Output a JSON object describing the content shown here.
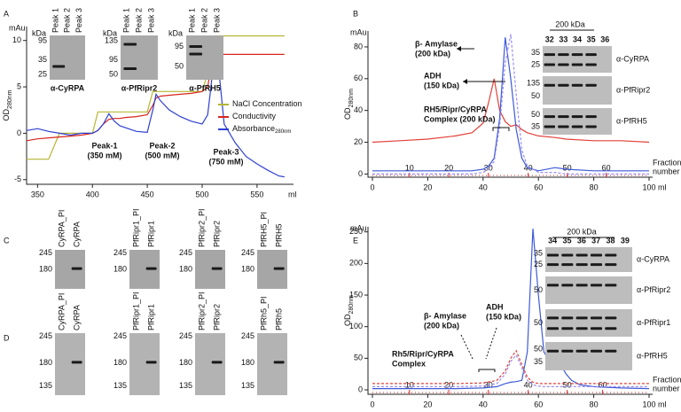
{
  "panel_labels": [
    "A",
    "B",
    "C",
    "D",
    "E"
  ],
  "chart_data": [
    {
      "type": "line",
      "y_unit": "mAu",
      "ylabel": "OD",
      "ylabel_sub": "280nm",
      "xlabel": "ml",
      "xlim": [
        340,
        580
      ],
      "xticks": [
        350,
        400,
        450,
        500,
        550
      ],
      "ylim": [
        -5.5,
        11.5
      ],
      "yticks": [
        -5,
        0,
        5,
        10
      ],
      "legend": "right",
      "x": [
        340,
        350,
        360,
        370,
        380,
        390,
        400,
        405,
        410,
        415,
        420,
        425,
        430,
        440,
        450,
        455,
        458,
        462,
        470,
        480,
        490,
        500,
        505,
        508,
        512,
        515,
        520,
        530,
        540,
        550,
        560,
        570,
        575
      ],
      "series": [
        {
          "name": "NaCl Concentration",
          "color": "#b5b532",
          "values": [
            -2.8,
            -2.8,
            -2.8,
            0,
            0,
            0,
            0,
            2.3,
            2.3,
            2.3,
            2.3,
            2.3,
            2.3,
            2.3,
            2.3,
            4.5,
            4.5,
            4.5,
            4.5,
            4.5,
            4.5,
            4.5,
            6.5,
            6.5,
            10.5,
            10.5,
            10.5,
            10.5,
            10.5,
            10.5,
            10.5,
            10.5,
            10.5
          ]
        },
        {
          "name": "Conductivity",
          "color": "#d7261e",
          "values": [
            -0.8,
            -0.6,
            -0.5,
            -0.4,
            -0.3,
            -0.2,
            0,
            0.3,
            1,
            1.5,
            1.6,
            1.6,
            1.7,
            1.8,
            2,
            3,
            3.8,
            4,
            4.1,
            4.2,
            4.3,
            4.5,
            5,
            7,
            8.4,
            8.5,
            8.5,
            8.5,
            8.5,
            8.5,
            8.5,
            8.5,
            8.5
          ]
        },
        {
          "name": "Absorbance",
          "name_sub": "280nm",
          "color": "#2e3fd1",
          "values": [
            0.3,
            0.5,
            0.2,
            0,
            -0.2,
            0,
            0,
            0.3,
            1,
            2.1,
            1.3,
            0.8,
            0.6,
            0.2,
            0.1,
            2.5,
            4.2,
            3.5,
            2.5,
            1.8,
            1.3,
            1,
            2,
            5,
            9.6,
            7,
            1,
            -1,
            -2.5,
            -3.3,
            -4,
            -4.6,
            -4.7
          ]
        }
      ],
      "annotations": [
        [
          "Peak-1",
          "(350 mM)"
        ],
        [
          "Peak-2",
          "(500 mM)"
        ],
        [
          "Peak-3",
          "(750 mM)"
        ]
      ],
      "insets": [
        {
          "unit": "kDa",
          "lanes": [
            "Peak 1",
            "Peak 2",
            "Peak 3"
          ],
          "markers": [
            "95",
            "35",
            "25"
          ],
          "antibody": "α-CyRPA"
        },
        {
          "unit": "kDa",
          "lanes": [
            "Peak 1",
            "Peak 2",
            "Peak 3"
          ],
          "markers": [
            "135",
            "95",
            "50"
          ],
          "antibody": "α-PfRipr2"
        },
        {
          "unit": "kDa",
          "lanes": [
            "Peak 1",
            "Peak 2",
            "Peak 3"
          ],
          "markers": [
            "95",
            "50"
          ],
          "antibody": "α-PfRH5"
        }
      ]
    },
    {
      "type": "line",
      "y_unit": "mAu",
      "ylabel": "OD",
      "ylabel_sub": "280nm",
      "xlabel": "ml",
      "xlim": [
        0,
        100
      ],
      "xticks": [
        0,
        20,
        40,
        60,
        80,
        100
      ],
      "ylim": [
        -2,
        90
      ],
      "yticks": [
        0,
        20,
        40,
        60,
        80
      ],
      "x": [
        0,
        10,
        20,
        30,
        36,
        40,
        42,
        44,
        46,
        48,
        50,
        52,
        54,
        56,
        60,
        66,
        70,
        80,
        90,
        100
      ],
      "series": [
        {
          "color": "#e0413a",
          "values": [
            20,
            21,
            22,
            24,
            26,
            32,
            45,
            60,
            40,
            33,
            30,
            31,
            28,
            26,
            24,
            23,
            22,
            21,
            21,
            20
          ]
        },
        {
          "color": "#3d5ad8",
          "values": [
            2,
            2,
            2,
            2,
            2,
            3,
            5,
            10,
            35,
            86,
            60,
            28,
            10,
            4,
            2,
            4,
            3,
            2,
            2,
            2
          ]
        },
        {
          "color": "#9a8df0",
          "style": "dashed",
          "values": [
            0,
            0,
            0,
            0,
            0,
            1,
            3,
            8,
            30,
            70,
            88,
            50,
            15,
            5,
            1,
            1,
            0,
            0,
            0,
            0
          ]
        }
      ],
      "fraction_color": "#d62728",
      "fraction_ticks": [
        {
          "value": 13.4,
          "label": "10"
        },
        {
          "value": 27.6,
          "label": "20"
        },
        {
          "value": 41.9,
          "label": "30"
        },
        {
          "value": 56.3,
          "label": "40"
        },
        {
          "value": 70.4,
          "label": "50"
        },
        {
          "value": 84.5,
          "label": "60"
        }
      ],
      "fraction_label": [
        "Fraction",
        "number"
      ],
      "annotations": [
        [
          "β- Amylase",
          "(200 kDa)"
        ],
        [
          "ADH",
          "(150 kDa)"
        ],
        [
          "RH5/Ripr/CyRPA",
          "Complex (200 kDa)"
        ]
      ],
      "blot_panel": {
        "size": "200 kDa",
        "lane_color": "#d62728",
        "lanes": [
          "32",
          "33",
          "34",
          "35",
          "36"
        ],
        "blots": [
          {
            "markers": [
              "35",
              "25"
            ],
            "antibody": "α-CyRPA"
          },
          {
            "markers": [
              "135",
              "50"
            ],
            "antibody": "α-PfRipr2"
          },
          {
            "markers": [
              "50",
              "35"
            ],
            "antibody": "α-PfRH5"
          }
        ]
      }
    },
    {
      "type": "line",
      "y_unit": "mAu",
      "ylabel": "OD",
      "ylabel_sub": "280nm",
      "xlabel": "ml",
      "xlim": [
        0,
        100
      ],
      "xticks": [
        0,
        20,
        40,
        60,
        80,
        100
      ],
      "ylim": [
        -7,
        258
      ],
      "yticks": [
        0,
        50,
        100,
        150,
        200,
        250
      ],
      "x": [
        0,
        10,
        20,
        30,
        40,
        45,
        48,
        50,
        52,
        54,
        56,
        58,
        60,
        62,
        64,
        66,
        68,
        70,
        72,
        75,
        80,
        90,
        100
      ],
      "series": [
        {
          "color": "#3d5ad8",
          "values": [
            2,
            2,
            2,
            2,
            3,
            5,
            10,
            12,
            13,
            15,
            60,
            255,
            150,
            60,
            45,
            50,
            40,
            25,
            15,
            8,
            5,
            3,
            2
          ]
        },
        {
          "color": "#e0413a",
          "style": "dashed",
          "values": [
            10,
            10,
            10,
            10,
            11,
            15,
            30,
            50,
            62,
            40,
            20,
            12,
            10,
            10,
            10,
            10,
            10,
            10,
            10,
            10,
            10,
            10,
            10
          ]
        },
        {
          "color": "#9a8df0",
          "style": "dashed",
          "values": [
            5,
            5,
            5,
            5,
            6,
            10,
            25,
            45,
            55,
            35,
            15,
            8,
            6,
            5,
            5,
            5,
            5,
            5,
            5,
            5,
            5,
            5,
            5
          ]
        }
      ],
      "fraction_color": "#d62728",
      "fraction_ticks": [
        {
          "value": 13.4,
          "label": "10"
        },
        {
          "value": 27.6,
          "label": "20"
        },
        {
          "value": 41.9,
          "label": "30"
        },
        {
          "value": 56.3,
          "label": "40"
        },
        {
          "value": 70.4,
          "label": "50"
        },
        {
          "value": 83.2,
          "label": "60"
        }
      ],
      "fraction_label": [
        "Fraction",
        "number"
      ],
      "annotations": [
        [
          "β- Amylase",
          "(200 kDa)"
        ],
        [
          "ADH",
          "(150 kDa)"
        ],
        [
          "Rh5/Ripr/CyRPA",
          "Complex"
        ]
      ],
      "blot_panel": {
        "size": "200 kDa",
        "lane_color": "#d62728",
        "lanes": [
          "34",
          "35",
          "36",
          "37",
          "38",
          "39"
        ],
        "blots": [
          {
            "markers": [
              "35",
              "25"
            ],
            "antibody": "α-CyRPA"
          },
          {
            "markers": [
              "50"
            ],
            "antibody": "α-PfRipr2"
          },
          {
            "markers": [
              "50"
            ],
            "antibody": "α-PfRipr1"
          },
          {
            "markers": [
              "50",
              "35"
            ],
            "antibody": "α-PfRH5"
          }
        ]
      }
    }
  ],
  "blots_C": [
    {
      "lanes": [
        "CyRPA_PI",
        "CyRPA"
      ],
      "markers": [
        "245",
        "180"
      ]
    },
    {
      "lanes": [
        "PfRipr1_PI",
        "PfRipr1"
      ],
      "markers": [
        "245",
        "180"
      ]
    },
    {
      "lanes": [
        "PfRipr2_PI",
        "PfRipr2"
      ],
      "markers": [
        "245",
        "180"
      ]
    },
    {
      "lanes": [
        "PfRH5_PI",
        "PfRH5"
      ],
      "markers": [
        "245",
        "180"
      ]
    }
  ],
  "blots_D": [
    {
      "lanes": [
        "CyRPA_PI",
        "CyRPA"
      ],
      "markers": [
        "245",
        "180",
        "135"
      ]
    },
    {
      "lanes": [
        "PfRipr1_PI",
        "PfRipr1"
      ],
      "markers": [
        "245",
        "180",
        "135"
      ]
    },
    {
      "lanes": [
        "PfRipr2_PI",
        "PfRipr2"
      ],
      "markers": [
        "245",
        "180",
        "135"
      ]
    },
    {
      "lanes": [
        "PfRh5_PI",
        "PfRh5"
      ],
      "markers": [
        "245",
        "180",
        "135"
      ]
    }
  ]
}
